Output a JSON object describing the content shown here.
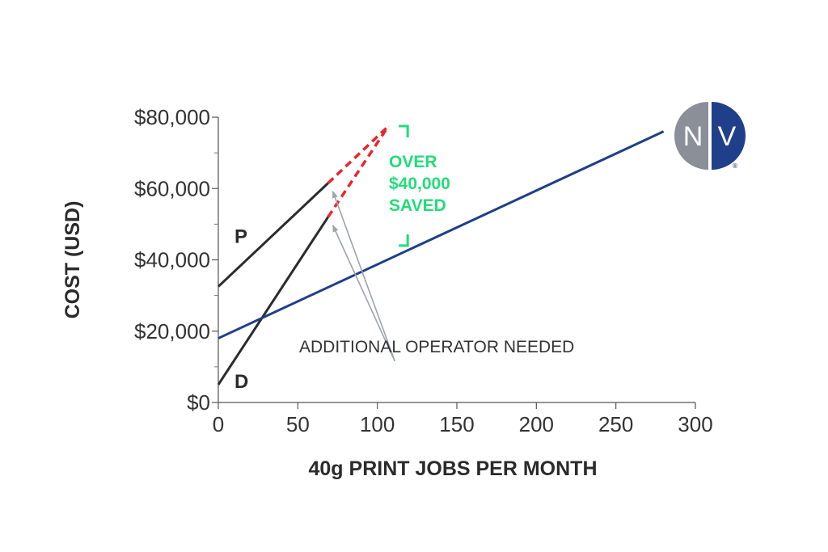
{
  "chart_data": {
    "type": "line",
    "title": "",
    "xlabel": "40g PRINT JOBS PER MONTH",
    "ylabel": "COST (USD)",
    "xlim": [
      0,
      300
    ],
    "ylim": [
      0,
      80000
    ],
    "x_ticks": [
      0,
      50,
      100,
      150,
      200,
      250,
      300
    ],
    "x_tick_labels": [
      "0",
      "50",
      "100",
      "150",
      "200",
      "250",
      "300"
    ],
    "y_ticks": [
      0,
      20000,
      40000,
      60000,
      80000
    ],
    "y_tick_labels": [
      "$0",
      "$20,000",
      "$40,000",
      "$60,000",
      "$80,000"
    ],
    "y_minor_ticks": [
      10000,
      30000,
      50000,
      70000
    ],
    "grid": false,
    "series": [
      {
        "name": "P",
        "color": "#2b2b2b",
        "style": "solid",
        "points": [
          [
            0,
            32500
          ],
          [
            69,
            61500
          ]
        ],
        "extension": {
          "color": "#e8262e",
          "style": "dashed",
          "points": [
            [
              69,
              61500
            ],
            [
              107,
              77500
            ]
          ]
        }
      },
      {
        "name": "D",
        "color": "#2b2b2b",
        "style": "solid",
        "points": [
          [
            0,
            5000
          ],
          [
            69,
            52000
          ]
        ],
        "extension": {
          "color": "#e8262e",
          "style": "dashed",
          "points": [
            [
              69,
              52000
            ],
            [
              107,
              77500
            ]
          ]
        }
      },
      {
        "name": "",
        "color": "#1f3f8a",
        "style": "solid",
        "points": [
          [
            0,
            18000
          ],
          [
            280,
            76000
          ]
        ]
      }
    ],
    "annotations": [
      {
        "id": "operator-note",
        "text": "ADDITIONAL OPERATOR NEEDED",
        "anchor": [
          112,
          15000
        ],
        "arrow_color": "#9ea3ad",
        "arrow_targets": [
          [
            71,
            61000
          ],
          [
            71,
            51500
          ]
        ]
      },
      {
        "id": "savings-note",
        "lines": [
          "OVER",
          "$40,000",
          "SAVED"
        ],
        "color": "#22dd77",
        "bracket_x": 115,
        "bracket_top": 77500,
        "bracket_bottom": 44000
      }
    ]
  },
  "logo": {
    "letters": [
      "N",
      "V"
    ],
    "mark": "®",
    "colors": {
      "left": "#8a8f98",
      "right": "#1f3f8a"
    }
  }
}
